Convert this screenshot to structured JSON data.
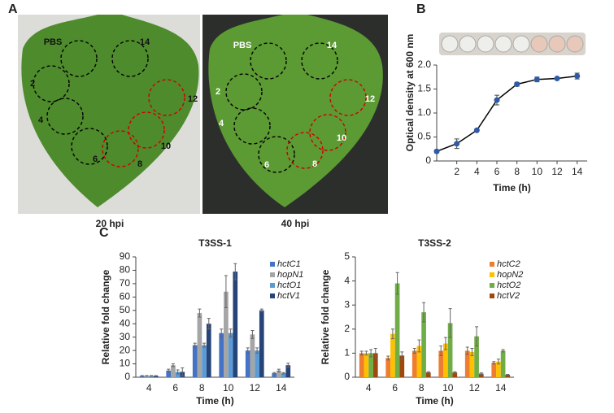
{
  "panel_labels": [
    "A",
    "B",
    "C"
  ],
  "leaf_images": [
    {
      "caption": "20 hpi",
      "spots": [
        "PBS",
        "2",
        "4",
        "6",
        "8",
        "10",
        "12",
        "14"
      ]
    },
    {
      "caption": "40 hpi",
      "spots": [
        "PBS",
        "2",
        "4",
        "6",
        "8",
        "10",
        "12",
        "14"
      ]
    }
  ],
  "chart_data": [
    {
      "type": "line",
      "ylabel": "Optical density at 600 nm",
      "xlabel": "Time (h)",
      "x": [
        0,
        2,
        4,
        6,
        8,
        10,
        12,
        14
      ],
      "values": [
        0.2,
        0.36,
        0.64,
        1.27,
        1.6,
        1.7,
        1.72,
        1.77
      ],
      "errors": [
        0.03,
        0.1,
        0.02,
        0.1,
        0.04,
        0.05,
        0.02,
        0.06
      ],
      "color": "#2e5aa8",
      "xlim": [
        0,
        15
      ],
      "xticks": [
        2,
        4,
        6,
        8,
        10,
        12,
        14
      ],
      "ylim": [
        0,
        2
      ],
      "yticks": [
        0,
        0.5,
        {
          "value": 1,
          "label": "1.0"
        },
        1.5,
        {
          "value": 2,
          "label": "2.0"
        }
      ]
    },
    {
      "type": "bar",
      "title": "T3SS-1",
      "ylabel": "Relative fold change",
      "xlabel": "Time (h)",
      "categories": [
        "4",
        "6",
        "8",
        "10",
        "12",
        "14"
      ],
      "series": [
        {
          "name": "hctC1",
          "color": "#4472c4",
          "values": [
            1,
            5,
            24,
            33,
            20,
            3
          ],
          "errors": [
            0.2,
            1,
            1.5,
            3,
            2,
            0.5
          ]
        },
        {
          "name": "hopN1",
          "color": "#a5a5a5",
          "values": [
            1,
            9,
            48,
            64,
            32,
            5
          ],
          "errors": [
            0.2,
            1,
            3,
            12,
            3,
            1
          ]
        },
        {
          "name": "hctO1",
          "color": "#5b9bd5",
          "values": [
            1,
            4,
            24,
            33,
            20,
            3
          ],
          "errors": [
            0.2,
            1.5,
            1.5,
            3,
            2,
            0.5
          ]
        },
        {
          "name": "hctV1",
          "color": "#264478",
          "values": [
            1,
            4,
            40,
            79,
            50,
            9
          ],
          "errors": [
            0.2,
            3,
            4,
            6,
            1,
            1.5
          ]
        }
      ],
      "ylim": [
        0,
        90
      ],
      "yticks": [
        0,
        10,
        20,
        30,
        40,
        50,
        60,
        70,
        80,
        90
      ]
    },
    {
      "type": "bar",
      "title": "T3SS-2",
      "ylabel": "Relative fold change",
      "xlabel": "Time (h)",
      "categories": [
        "4",
        "6",
        "8",
        "10",
        "12",
        "14"
      ],
      "series": [
        {
          "name": "hctC2",
          "color": "#ed7d31",
          "values": [
            1,
            0.8,
            1.1,
            1.1,
            1.1,
            0.6
          ],
          "errors": [
            0.08,
            0.08,
            0.1,
            0.2,
            0.15,
            0.05
          ]
        },
        {
          "name": "hopN2",
          "color": "#ffc000",
          "values": [
            1,
            1.8,
            1.3,
            1.4,
            1.05,
            0.65
          ],
          "errors": [
            0.08,
            0.2,
            0.25,
            0.25,
            0.15,
            0.1
          ]
        },
        {
          "name": "hctO2",
          "color": "#70ad47",
          "values": [
            1,
            3.9,
            2.7,
            2.25,
            1.7,
            1.1
          ],
          "errors": [
            0.15,
            0.45,
            0.4,
            0.6,
            0.4,
            0.05
          ]
        },
        {
          "name": "hctV2",
          "color": "#9e480e",
          "values": [
            1,
            0.9,
            0.2,
            0.2,
            0.15,
            0.1
          ],
          "errors": [
            0.2,
            0.15,
            0.03,
            0.03,
            0.03,
            0.02
          ]
        }
      ],
      "ylim": [
        0,
        5
      ],
      "yticks": [
        0,
        1,
        2,
        3,
        4,
        5
      ]
    }
  ]
}
